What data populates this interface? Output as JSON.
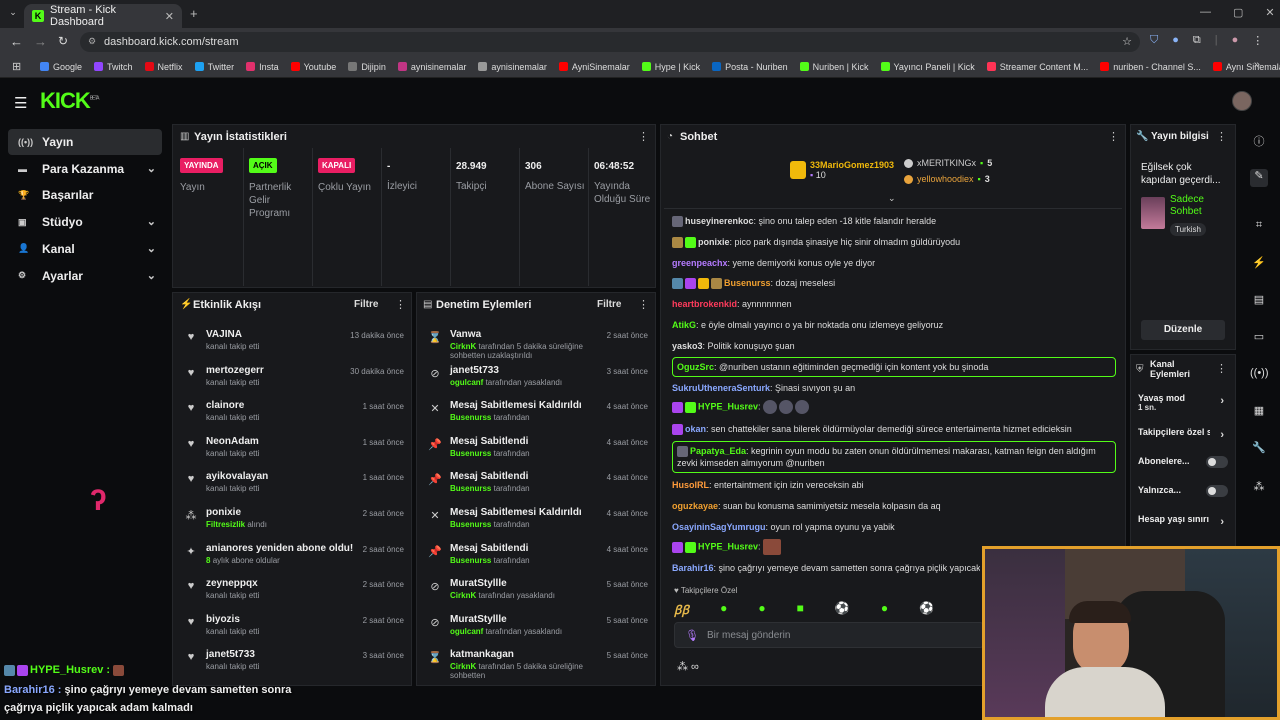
{
  "browser": {
    "tab_title": "Stream - Kick Dashboard",
    "url": "dashboard.kick.com/stream",
    "bookmarks": [
      "Google",
      "Twitch",
      "Netflix",
      "Twitter",
      "Insta",
      "Youtube",
      "Dijipin",
      "aynisinemalar",
      "aynisinemalar",
      "AyniSinemalar",
      "Hype | Kick",
      "Posta - Nuriben",
      "Nuriben | Kick",
      "Yayıncı Paneli | Kick",
      "Streamer Content M...",
      "nuriben - Channel S...",
      "Aynı Sinemalar - Ça..."
    ],
    "bookmark_colors": [
      "#4285f4",
      "#9146ff",
      "#e50914",
      "#1da1f2",
      "#e1306c",
      "#ff0000",
      "#777777",
      "#c13584",
      "#999999",
      "#ff0000",
      "#53fc18",
      "#0a66c2",
      "#53fc18",
      "#53fc18",
      "#ff3355",
      "#ff0000",
      "#ff0000"
    ]
  },
  "kick": {
    "logo": "KICK",
    "logo_sup": "BETA"
  },
  "sidebar": {
    "items": [
      {
        "label": "Yayın",
        "icon": "broadcast-icon"
      },
      {
        "label": "Para Kazanma",
        "icon": "wallet-icon"
      },
      {
        "label": "Başarılar",
        "icon": "trophy-icon"
      },
      {
        "label": "Stüdyo",
        "icon": "studio-icon"
      },
      {
        "label": "Kanal",
        "icon": "user-icon"
      },
      {
        "label": "Ayarlar",
        "icon": "gear-icon"
      }
    ]
  },
  "stats": {
    "title": "Yayın İstatistikleri",
    "items": [
      {
        "badge": "YAYINDA",
        "label": "Yayın"
      },
      {
        "badge": "AÇIK",
        "label": "Partnerlik Gelir Programı"
      },
      {
        "badge": "KAPALI",
        "label": "Çoklu Yayın"
      },
      {
        "value": "-",
        "label": "İzleyici"
      },
      {
        "value": "28.949",
        "label": "Takipçi"
      },
      {
        "value": "306",
        "label": "Abone Sayısı"
      },
      {
        "value": "06:48:52",
        "label": "Yayında Olduğu Süre"
      }
    ]
  },
  "activity": {
    "title": "Etkinlik Akışı",
    "filter": "Filtre",
    "rows": [
      {
        "name": "VAJINA",
        "sub": "kanalı takip etti",
        "time": "13 dakika önce"
      },
      {
        "name": "mertozegerr",
        "sub": "kanalı takip etti",
        "time": "30 dakika önce"
      },
      {
        "name": "clainore",
        "sub": "kanalı takip etti",
        "time": "1 saat önce"
      },
      {
        "name": "NeonAdam",
        "sub": "kanalı takip etti",
        "time": "1 saat önce"
      },
      {
        "name": "ayikovalayan",
        "sub": "kanalı takip etti",
        "time": "1 saat önce"
      },
      {
        "name": "ponixie",
        "sub": "alındı",
        "sub_hl": "Filtresizlik",
        "time": "2 saat önce"
      },
      {
        "name": "anianores yeniden abone oldu!",
        "sub": "aylık abone oldular",
        "sub_hl": "8",
        "time": "2 saat önce"
      },
      {
        "name": "zeyneppqx",
        "sub": "kanalı takip etti",
        "time": "2 saat önce"
      },
      {
        "name": "biyozis",
        "sub": "kanalı takip etti",
        "time": "2 saat önce"
      },
      {
        "name": "janet5t733",
        "sub": "kanalı takip etti",
        "time": "3 saat önce"
      }
    ]
  },
  "moderation": {
    "title": "Denetim Eylemleri",
    "filter": "Filtre",
    "rows": [
      {
        "name": "Vanwa",
        "sub_hl": "CirknK",
        "sub": "tarafından 5 dakika süreliğine sohbetten uzaklaştırıldı",
        "time": "2 saat önce"
      },
      {
        "name": "janet5t733",
        "sub_hl": "ogulcanf",
        "sub": "tarafından yasaklandı",
        "time": "3 saat önce"
      },
      {
        "name": "Mesaj Sabitlemesi Kaldırıldı",
        "sub_hl": "Busenurss",
        "sub": "tarafından",
        "time": "4 saat önce"
      },
      {
        "name": "Mesaj Sabitlendi",
        "sub_hl": "Busenurss",
        "sub": "tarafından",
        "time": "4 saat önce"
      },
      {
        "name": "Mesaj Sabitlendi",
        "sub_hl": "Busenurss",
        "sub": "tarafından",
        "time": "4 saat önce"
      },
      {
        "name": "Mesaj Sabitlemesi Kaldırıldı",
        "sub_hl": "Busenurss",
        "sub": "tarafından",
        "time": "4 saat önce"
      },
      {
        "name": "Mesaj Sabitlendi",
        "sub_hl": "Busenurss",
        "sub": "tarafından",
        "time": "4 saat önce"
      },
      {
        "name": "MuratStyllle",
        "sub_hl": "CirknK",
        "sub": "tarafından yasaklandı",
        "time": "5 saat önce"
      },
      {
        "name": "MuratStyllle",
        "sub_hl": "ogulcanf",
        "sub": "tarafından yasaklandı",
        "time": "5 saat önce"
      },
      {
        "name": "katmankagan",
        "sub_hl": "CirknK",
        "sub": "tarafından 5 dakika süreliğine sohbetten",
        "time": "5 saat önce"
      }
    ]
  },
  "chat": {
    "title": "Sohbet",
    "leaders": [
      {
        "name": "33MarioGomez1903",
        "count": "10",
        "color": "#f0b90b"
      },
      {
        "name": "xMERITKINGx",
        "count": "5",
        "color": "#cccccc"
      },
      {
        "name": "yellowhoodiex",
        "count": "3",
        "color": "#e8a33c"
      }
    ],
    "messages": [
      {
        "user": "huseyinerenkoc",
        "color": "#dddddd",
        "text": "şino onu talep eden -18 kitle falandır heralde"
      },
      {
        "user": "ponixie",
        "color": "#dddddd",
        "text": "pico park dışında şinasiye hiç sinir olmadım güldürüyodu"
      },
      {
        "user": "greenpeachx",
        "color": "#b57bff",
        "text": "yeme demiyorki konus oyle ye diyor"
      },
      {
        "user": "Busenurss",
        "color": "#f0a030",
        "text": "dozaj meselesi"
      },
      {
        "user": "heartbrokenkid",
        "color": "#ff3b5c",
        "text": "aynnnnnnen"
      },
      {
        "user": "AtikG",
        "color": "#53fc18",
        "text": "e öyle olmalı yayıncı o ya bir noktada onu izlemeye geliyoruz"
      },
      {
        "user": "yasko3",
        "color": "#dddddd",
        "text": "Politik konuşuyo şuan"
      },
      {
        "user": "OguzSrc",
        "color": "#53fc18",
        "text": "@nuriben ustanın eğitiminden geçmediği için kontent yok bu şinoda"
      },
      {
        "user": "SukruUtheneraSenturk",
        "color": "#8aa8ff",
        "text": "Şinasi sıvıyon şu an"
      },
      {
        "user": "HYPE_Husrev",
        "color": "#53fc18",
        "text": ""
      },
      {
        "user": "okan",
        "color": "#8aa8ff",
        "text": "sen chattekiler sana bilerek öldürmüyolar demediği sürece entertaimenta hizmet edicieksin"
      },
      {
        "user": "Papatya_Eda",
        "color": "#53fc18",
        "text": "kegrinin oyun modu bu zaten onun öldürülmemesi makarası, katman feign den aldığım zevki kimseden almıyorum @nuriben"
      },
      {
        "user": "HusolRL",
        "color": "#ff9b3b",
        "text": "entertaintment için izin vereceksin abi"
      },
      {
        "user": "oguzkayae",
        "color": "#f0a030",
        "text": "suan bu konusma samimiyetsiz mesela kolpasın da aq"
      },
      {
        "user": "OsayininSagYumrugu",
        "color": "#8aa8ff",
        "text": "oyun rol yapma oyunu ya yabik"
      },
      {
        "user": "HYPE_Husrev",
        "color": "#53fc18",
        "text": ""
      },
      {
        "user": "Barahir16",
        "color": "#8aa8ff",
        "text": "şino çağrıyı yemeye devam sametten sonra çağrıya piçlik yapıcak adam kalmadı"
      }
    ],
    "followers_only": "Takipçilere Özel",
    "input_placeholder": "Bir mesaj gönderin"
  },
  "stream_info": {
    "title": "Yayın bilgisi",
    "stream_title": "Eğilsek çok kapıdan geçerdi...",
    "category": "Sadece Sohbet",
    "language": "Turkish",
    "edit_button": "Düzenle"
  },
  "channel_actions": {
    "title": "Kanal Eylemleri",
    "items": [
      {
        "label": "Yavaş mod",
        "sub": "1 sn.",
        "kind": "chevron"
      },
      {
        "label": "Takipçilere özel s",
        "kind": "chevron"
      },
      {
        "label": "Abonelere...",
        "kind": "toggle"
      },
      {
        "label": "Yalnızca...",
        "kind": "toggle"
      },
      {
        "label": "Hesap yaşı sınırı",
        "kind": "chevron"
      }
    ]
  },
  "overlay": {
    "line1_user": "HYPE_Husrev :",
    "line2_user": "Barahir16 :",
    "line2_text": "şino çağrıyı yemeye devam sametten sonra",
    "line3_text": "çağrıya piçlik yapıcak adam kalmadı"
  },
  "colors": {
    "accent": "#53fc18",
    "panel": "#18191c",
    "live_red": "#e91e63",
    "cam_border": "#e3a02b"
  }
}
